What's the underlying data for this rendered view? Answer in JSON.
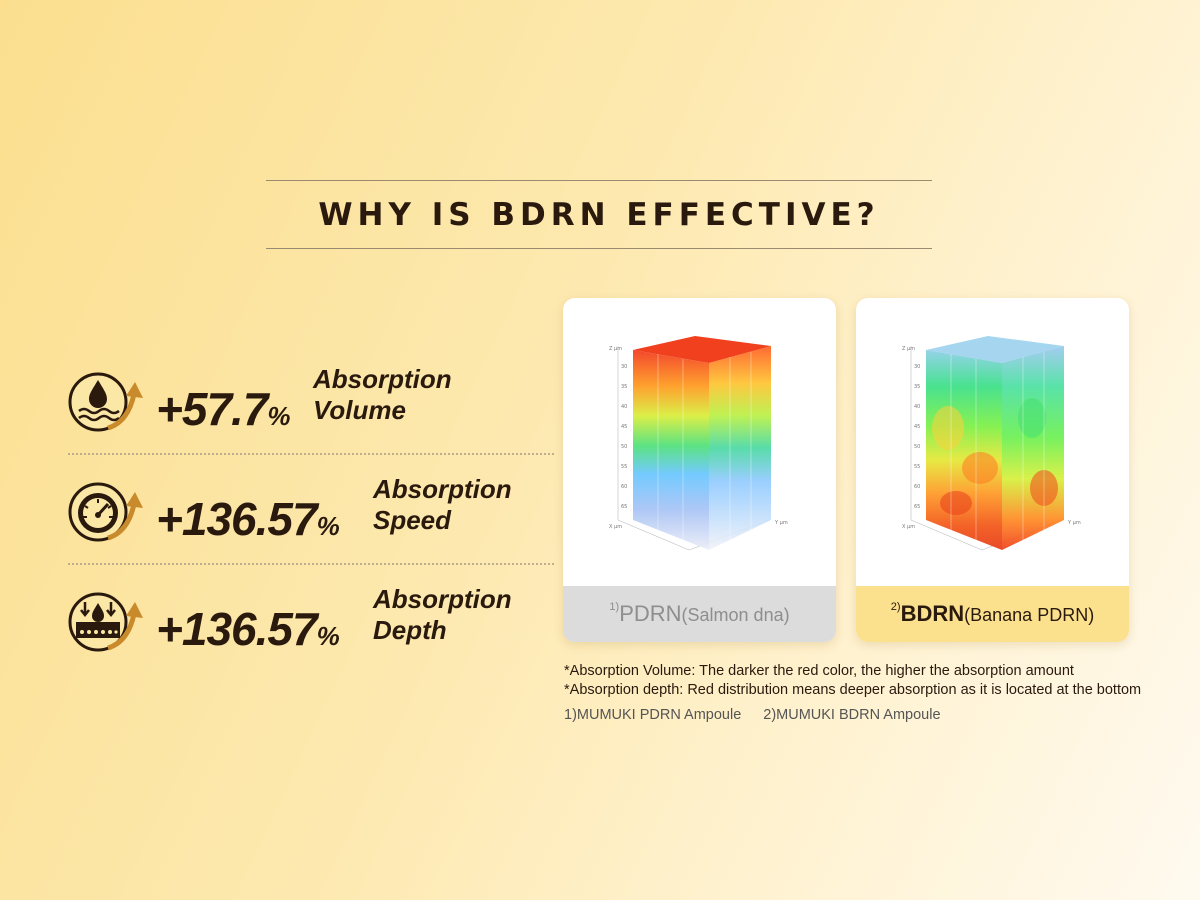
{
  "title": "WHY IS BDRN EFFECTIVE?",
  "stats": [
    {
      "value": "+57.7",
      "unit": "%",
      "label_line1": "Absorption",
      "label_line2": "Volume",
      "icon": "water-drop-waves-icon"
    },
    {
      "value": "+136.57",
      "unit": "%",
      "label_line1": "Absorption",
      "label_line2": "Speed",
      "icon": "speedometer-icon"
    },
    {
      "value": "+136.57",
      "unit": "%",
      "label_line1": "Absorption",
      "label_line2": "Depth",
      "icon": "skin-penetration-icon"
    }
  ],
  "cards": [
    {
      "sup": "1)",
      "name": "PDRN",
      "detail": "(Salmon dna)"
    },
    {
      "sup": "2)",
      "name": "BDRN",
      "detail": "(Banana PDRN)"
    }
  ],
  "notes": [
    "*Absorption Volume: The darker the red color, the higher the absorption amount",
    "*Absorption depth: Red distribution means deeper absorption as it is located at the bottom"
  ],
  "references": [
    "1)MUMUKI PDRN Ampoule",
    "2)MUMUKI BDRN Ampoule"
  ],
  "colors": {
    "text_dark": "#2a1a0e",
    "accent_gold": "#fbe18d",
    "gray_footer": "#dcdcdc"
  }
}
